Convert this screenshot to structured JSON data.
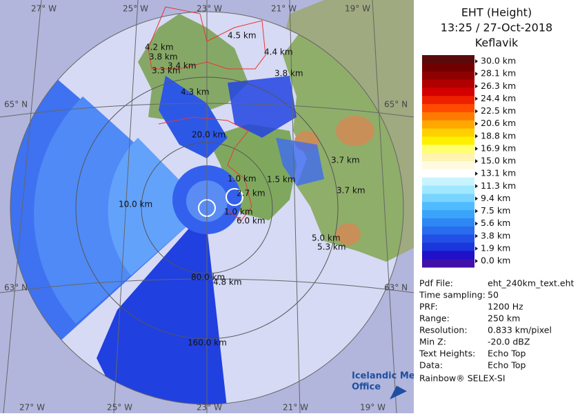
{
  "header": {
    "title": "EHT (Height)",
    "time": "13:25 / 27-Oct-2018",
    "station": "Keflavik"
  },
  "legend": {
    "labels": [
      "30.0 km",
      "28.1 km",
      "26.3 km",
      "24.4 km",
      "22.5 km",
      "20.6 km",
      "18.8 km",
      "16.9 km",
      "15.0 km",
      "13.1 km",
      "11.3 km",
      "9.4 km",
      "7.5 km",
      "5.6 km",
      "3.8 km",
      "1.9 km",
      "0.0 km"
    ]
  },
  "info": {
    "rows": [
      [
        "Pdf File:",
        "eht_240km_text.eht"
      ],
      [
        "Time sampling:",
        "50"
      ],
      [
        "PRF:",
        "1200 Hz"
      ],
      [
        "Range:",
        "250 km"
      ],
      [
        "Resolution:",
        "0.833 km/pixel"
      ],
      [
        "Min Z:",
        "-20.0 dBZ"
      ],
      [
        "Text Heights:",
        "Echo Top"
      ],
      [
        "Data:",
        "Echo Top"
      ]
    ],
    "footer": "Rainbow® SELEX-SI"
  },
  "map": {
    "graticule": [
      "27° W",
      "25° W",
      "23° W",
      "21° W",
      "19° W",
      "65° N",
      "63° N"
    ],
    "ranges": [
      "80.0 km",
      "160.0 km"
    ],
    "echo_tops": [
      "4.5 km",
      "4.2 km",
      "3.8 km",
      "3.3 km",
      "3.4 km",
      "4.4 km",
      "3.8 km",
      "4.3 km",
      "20.0 km",
      "3.7 km",
      "1.0 km",
      "1.5 km",
      "2.7 km",
      "3.7 km",
      "10.0 km",
      "1.0 km",
      "6.0 km",
      "5.0 km",
      "5.3 km",
      "4.8 km"
    ],
    "logo": [
      "Icelandic Met",
      "Office"
    ]
  }
}
